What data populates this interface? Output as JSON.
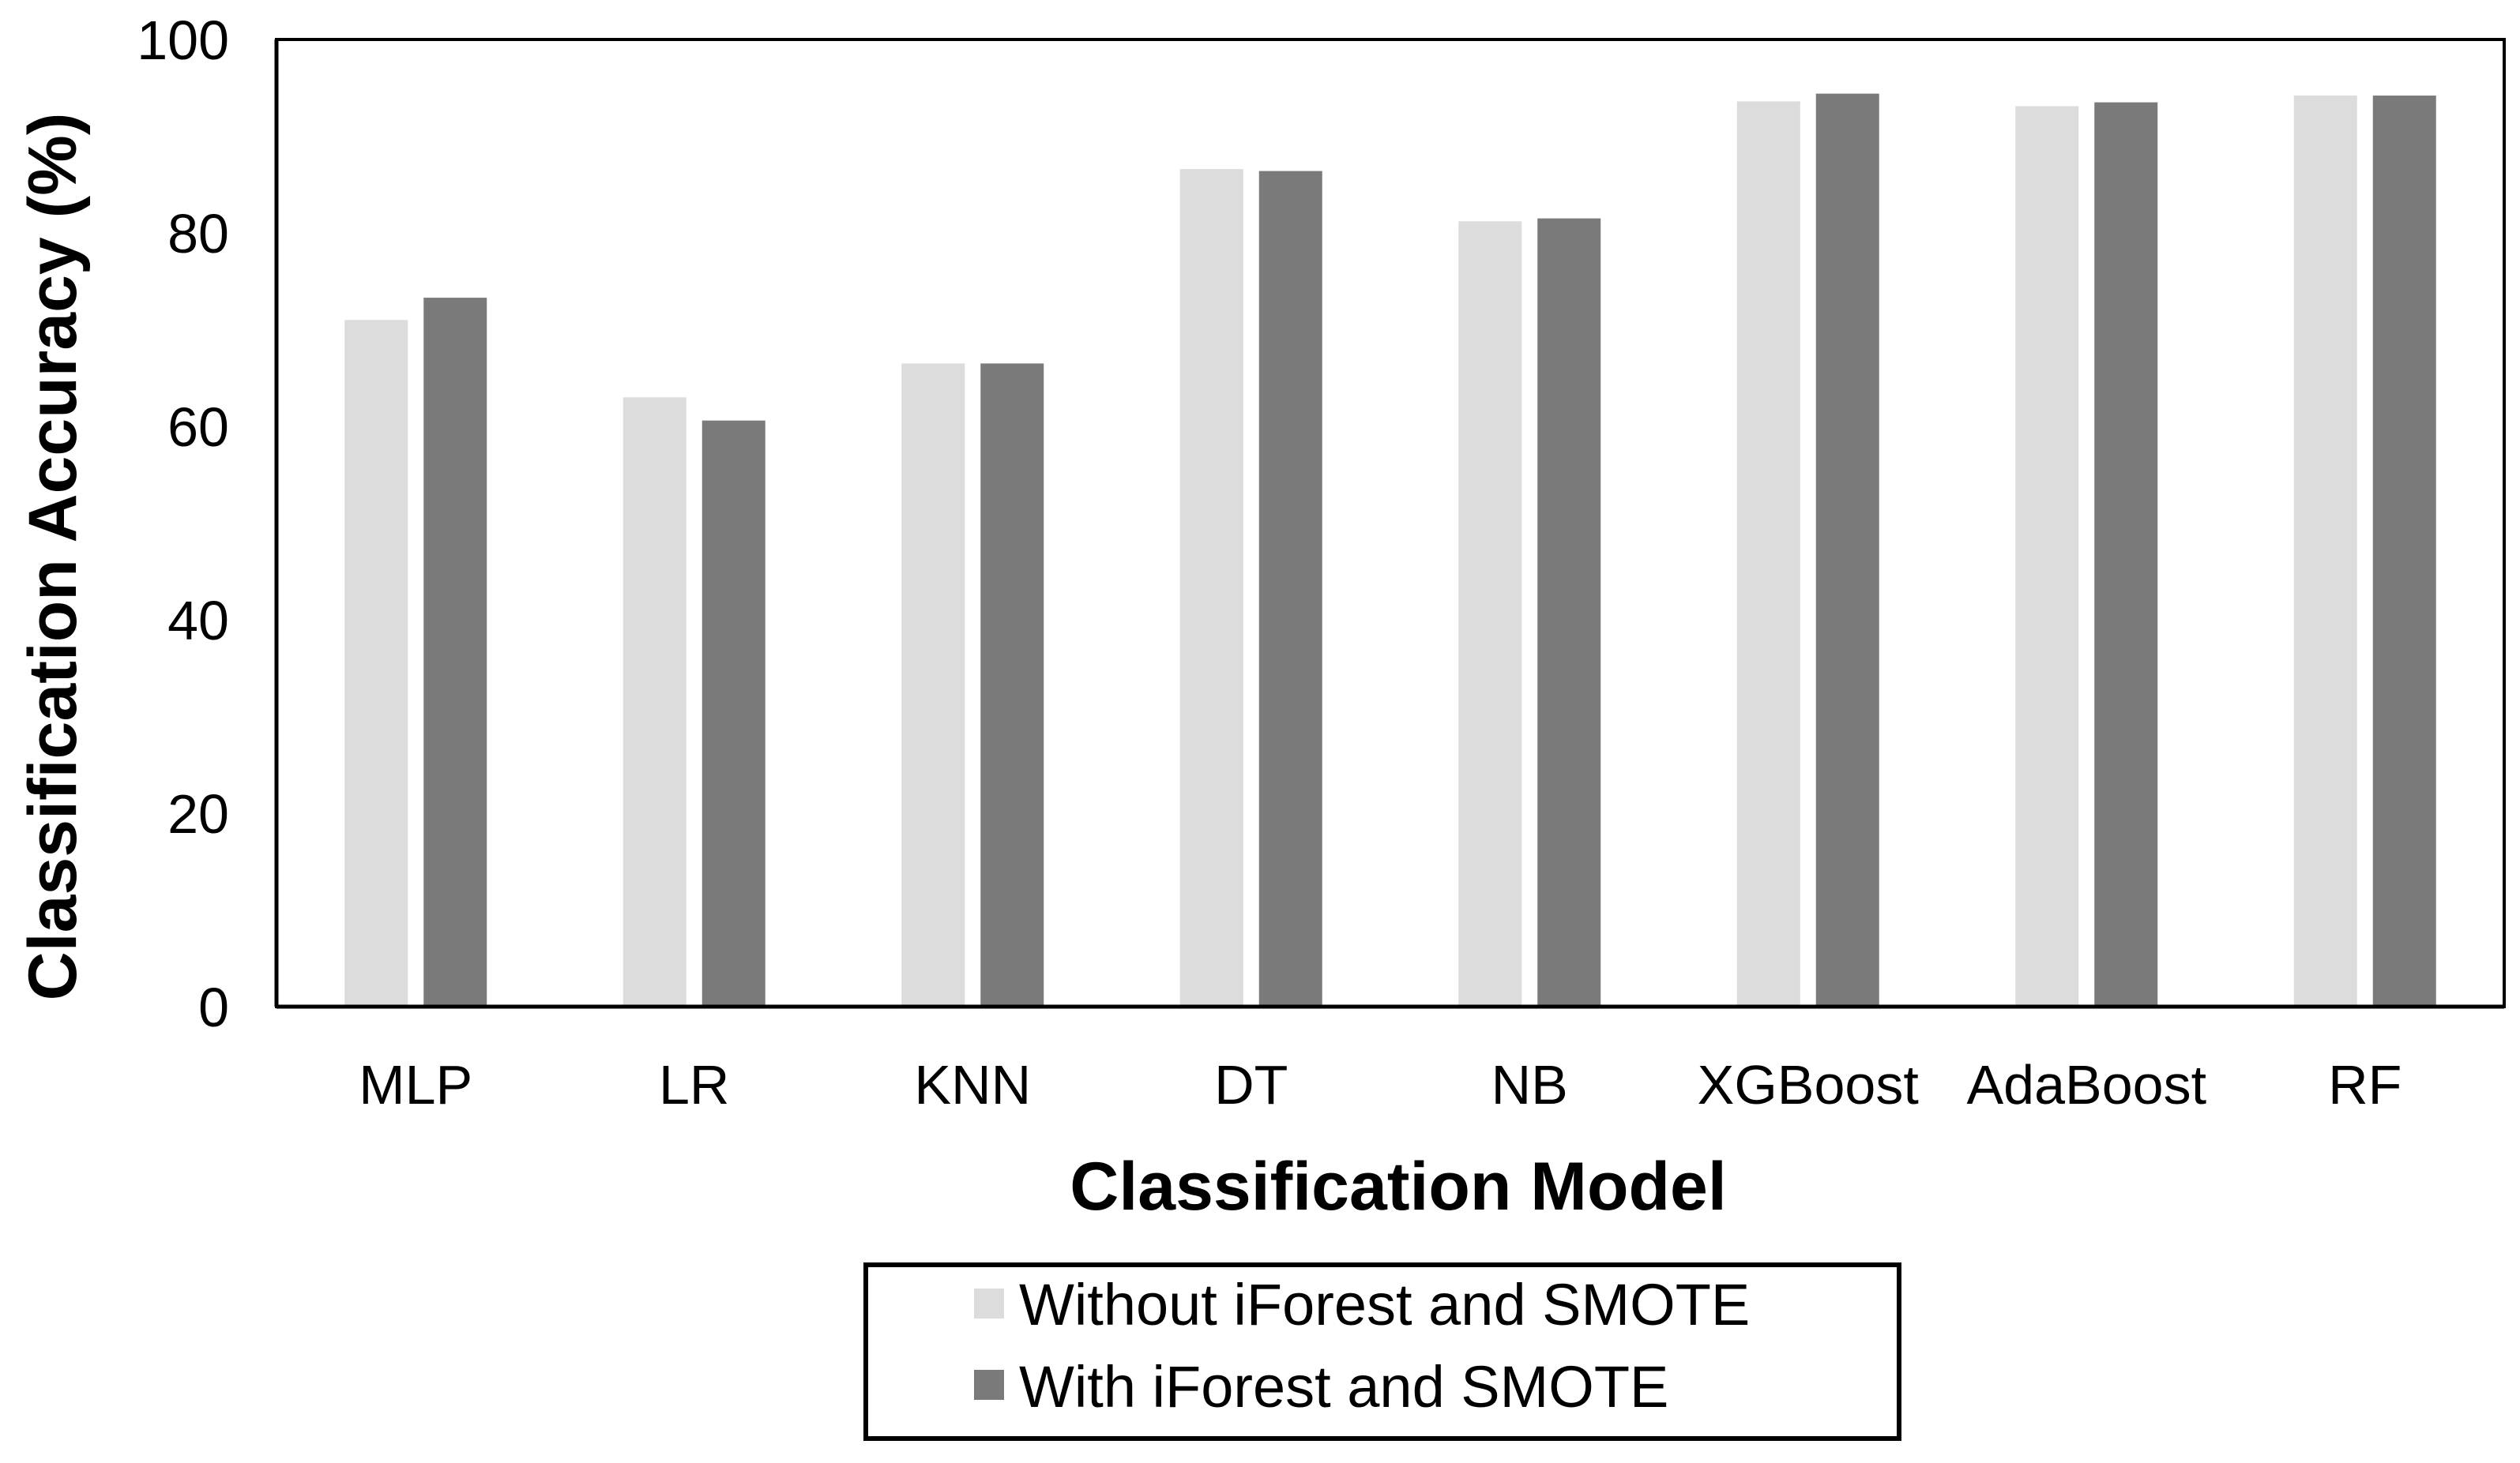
{
  "chart_data": {
    "type": "bar",
    "categories": [
      "MLP",
      "LR",
      "KNN",
      "DT",
      "NB",
      "XGBoost",
      "AdaBoost",
      "RF"
    ],
    "series": [
      {
        "name": "Without iForest and SMOTE",
        "color": "#dcdcdc",
        "values": [
          71.0,
          63.0,
          66.5,
          86.6,
          81.2,
          93.6,
          93.1,
          94.2
        ]
      },
      {
        "name": "With iForest and SMOTE",
        "color": "#7a7a7a",
        "values": [
          73.3,
          60.6,
          66.5,
          86.4,
          81.5,
          94.4,
          93.5,
          94.2
        ]
      }
    ],
    "xlabel": "Classification Model",
    "ylabel": "Classification Accuracy (%)",
    "ylim": [
      0,
      100
    ],
    "yticks": [
      0,
      20,
      40,
      60,
      80,
      100
    ],
    "grid": false,
    "legend": "bottom-center"
  }
}
